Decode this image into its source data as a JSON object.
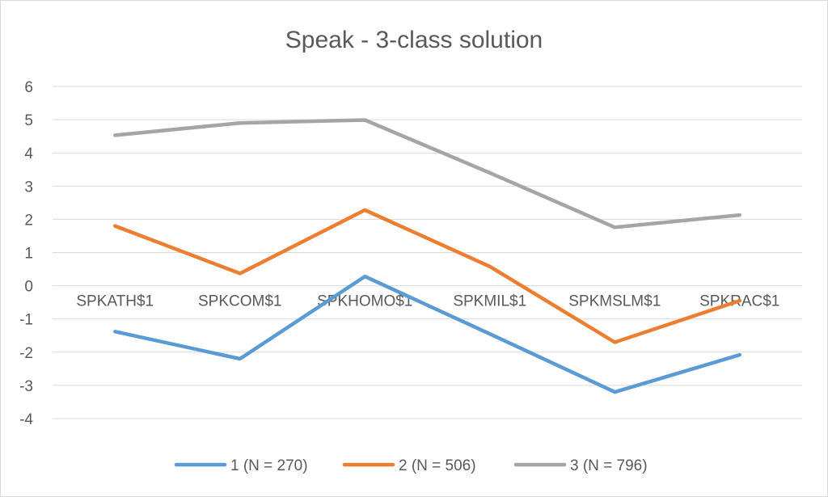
{
  "chart_data": {
    "type": "line",
    "title": "Speak - 3-class solution",
    "categories": [
      "SPKATH$1",
      "SPKCOM$1",
      "SPKHOMO$1",
      "SPKMIL$1",
      "SPKMSLM$1",
      "SPKRAC$1"
    ],
    "series": [
      {
        "name": "1 (N = 270)",
        "values": [
          -1.38,
          -2.2,
          0.28,
          -1.45,
          -3.2,
          -2.08
        ],
        "color": "#5b9bd5"
      },
      {
        "name": "2 (N = 506)",
        "values": [
          1.8,
          0.37,
          2.28,
          0.58,
          -1.7,
          -0.45
        ],
        "color": "#ed7d31"
      },
      {
        "name": "3 (N = 796)",
        "values": [
          4.53,
          4.9,
          4.99,
          3.4,
          1.76,
          2.13
        ],
        "color": "#a5a5a5"
      }
    ],
    "ylim": [
      -4,
      6
    ],
    "yticks": [
      -4,
      -3,
      -2,
      -1,
      0,
      1,
      2,
      3,
      4,
      5,
      6
    ],
    "xlabel": "",
    "ylabel": "",
    "grid": true,
    "legend_position": "bottom"
  }
}
